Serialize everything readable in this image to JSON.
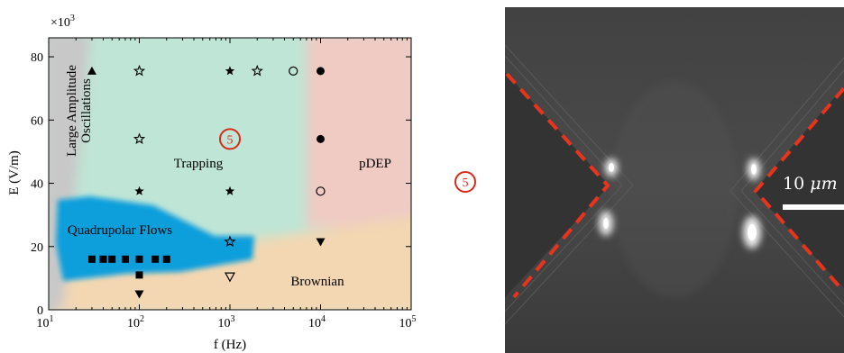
{
  "chart_data": {
    "type": "scatter",
    "x_scale": "log",
    "x_tick_labels": [
      {
        "base": "10",
        "exp": "1"
      },
      {
        "base": "10",
        "exp": "2"
      },
      {
        "base": "10",
        "exp": "3"
      },
      {
        "base": "10",
        "exp": "4"
      },
      {
        "base": "10",
        "exp": "5"
      }
    ],
    "y_tick_labels": [
      "0",
      "20",
      "40",
      "60",
      "80"
    ],
    "y_multiplier": {
      "base": "×10",
      "exp": "3"
    },
    "xlabel": "f (Hz)",
    "ylabel": "E (V/m)",
    "xlim": [
      10,
      100000
    ],
    "ylim": [
      0,
      86
    ],
    "regions": [
      {
        "name": "Large Amplitude Oscillations",
        "line1": "Large Amplitude",
        "line2": "Oscillations",
        "color": "#c8c8c8"
      },
      {
        "name": "Trapping",
        "color": "#bfe5d6"
      },
      {
        "name": "pDEP",
        "color": "#efcbc4"
      },
      {
        "name": "Quadrupolar Flows",
        "color": "#0a9fdc"
      },
      {
        "name": "Brownian",
        "color": "#f2d7b2"
      }
    ],
    "points": [
      {
        "x": 30,
        "y": 75.5,
        "marker": "triangle-up-filled"
      },
      {
        "x": 100,
        "y": 75.5,
        "marker": "star-open"
      },
      {
        "x": 1000,
        "y": 75.5,
        "marker": "star-filled"
      },
      {
        "x": 2000,
        "y": 75.5,
        "marker": "star-open"
      },
      {
        "x": 5000,
        "y": 75.5,
        "marker": "circle-open"
      },
      {
        "x": 10000,
        "y": 75.5,
        "marker": "circle-filled"
      },
      {
        "x": 100,
        "y": 54,
        "marker": "star-open"
      },
      {
        "x": 10000,
        "y": 54,
        "marker": "circle-filled"
      },
      {
        "x": 100,
        "y": 37.5,
        "marker": "star-filled"
      },
      {
        "x": 1000,
        "y": 37.5,
        "marker": "star-filled"
      },
      {
        "x": 10000,
        "y": 37.5,
        "marker": "circle-open"
      },
      {
        "x": 1000,
        "y": 21.5,
        "marker": "star-open"
      },
      {
        "x": 10000,
        "y": 21.5,
        "marker": "triangle-down-filled"
      },
      {
        "x": 30,
        "y": 16,
        "marker": "square-filled"
      },
      {
        "x": 40,
        "y": 16,
        "marker": "square-filled"
      },
      {
        "x": 50,
        "y": 16,
        "marker": "square-filled"
      },
      {
        "x": 70,
        "y": 16,
        "marker": "square-filled"
      },
      {
        "x": 100,
        "y": 16,
        "marker": "square-filled"
      },
      {
        "x": 150,
        "y": 16,
        "marker": "square-filled"
      },
      {
        "x": 200,
        "y": 16,
        "marker": "square-filled"
      },
      {
        "x": 100,
        "y": 11,
        "marker": "square-filled"
      },
      {
        "x": 100,
        "y": 5,
        "marker": "triangle-down-filled"
      },
      {
        "x": 1000,
        "y": 10.5,
        "marker": "triangle-down-open"
      }
    ],
    "annotation_marker": {
      "label": "5",
      "x": 1000,
      "y": 54,
      "color": "#d92a1a"
    }
  },
  "micrograph": {
    "label": "5",
    "scale_bar": {
      "value": "10",
      "unit": "μm"
    },
    "electrode_outline_color": "#e8341c"
  }
}
